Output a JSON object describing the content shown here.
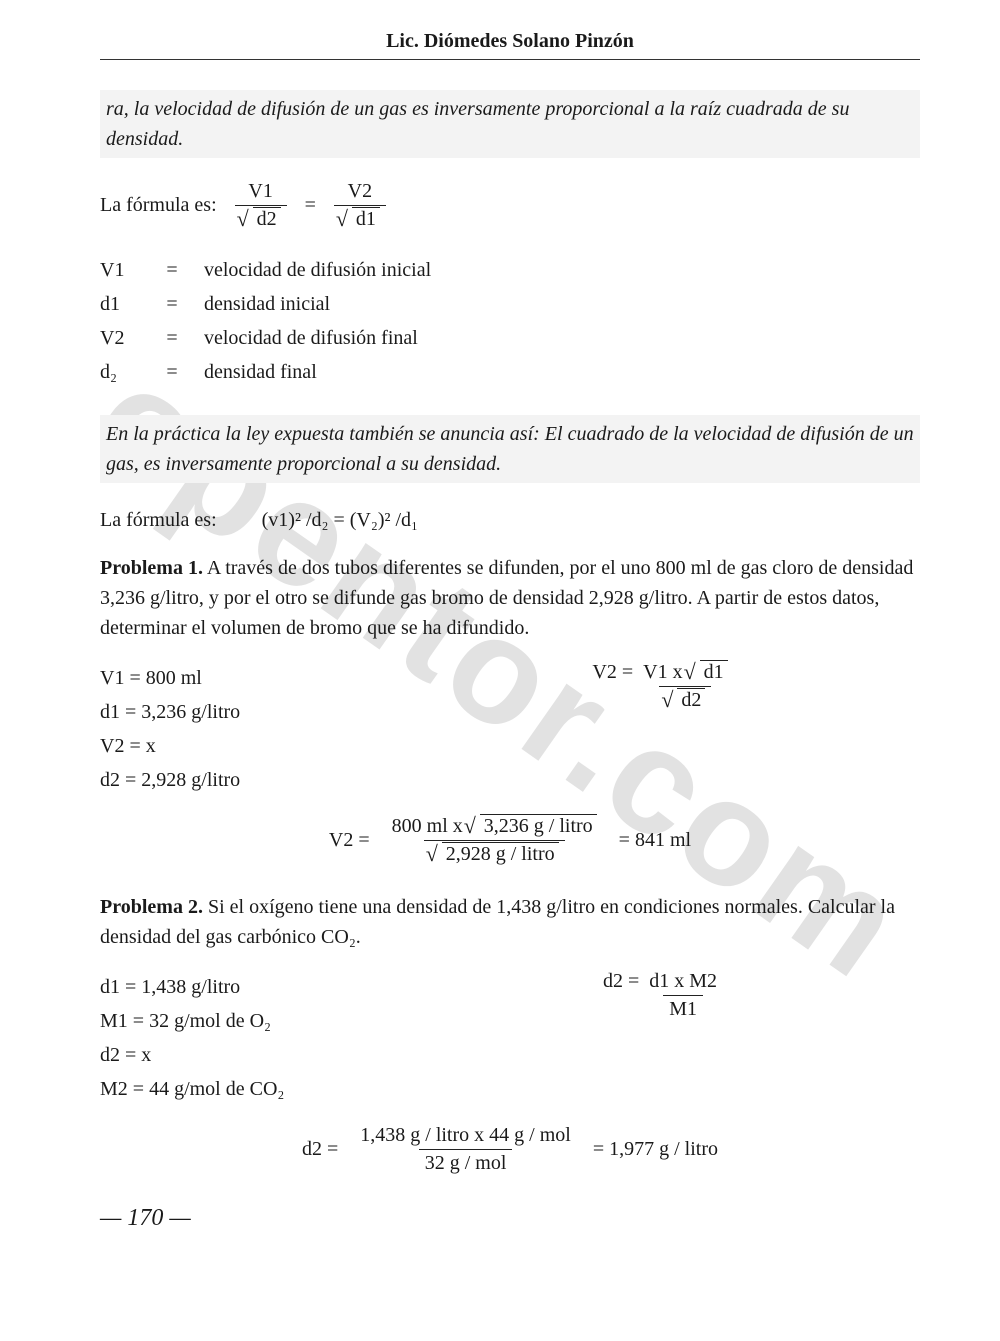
{
  "header": {
    "author": "Lic. Diómedes Solano Pinzón"
  },
  "watermark": "opentor.com",
  "intro": {
    "highlight1": "ra, la velocidad de difusión de un gas es inversamente proporcional a la raíz cuadrada de su densidad.",
    "formula_label": "La fórmula es:",
    "frac1_num": "V1",
    "frac1_den": "d2",
    "frac2_num": "V2",
    "frac2_den": "d1"
  },
  "defs": [
    {
      "sym": "V1",
      "eq": "=",
      "text": "velocidad de difusión inicial"
    },
    {
      "sym": "d1",
      "eq": "=",
      "text": "densidad inicial"
    },
    {
      "sym": "V2",
      "eq": "=",
      "text": "velocidad de difusión final"
    },
    {
      "sym": "d₂",
      "eq": "=",
      "text": "densidad final"
    }
  ],
  "highlight2": "En la práctica la ley expuesta también se anuncia así: El cuadrado de la velocidad de difusión de un gas, es inversamente proporcional a su densidad.",
  "formula2": {
    "label": "La fórmula es:",
    "expr": "(v1)² /d₂  =  (V₂)² /d₁"
  },
  "problem1": {
    "title": "Problema 1.",
    "text": " A través de dos tubos diferentes se difunden, por el uno 800 ml de gas cloro de densidad 3,236 g/litro, y por el otro se difunde gas bromo de densidad 2,928 g/litro. A partir de estos datos, determinar el volumen de bromo que se ha difundido.",
    "givens": [
      "V1  =  800 ml",
      "d1  =  3,236  g/litro",
      "V2  =  x",
      "d2  =  2,928  g/litro"
    ],
    "f1_lhs": "V2  = ",
    "f1_num": "V1 x ",
    "f1_num_sqrt": "d1",
    "f1_den_sqrt": "d2",
    "f2_lhs": "V2  = ",
    "f2_num_a": "800 ml x ",
    "f2_num_sqrt": "3,236 g / litro",
    "f2_den_sqrt": "2,928 g / litro",
    "f2_result": "  =  841 ml"
  },
  "problem2": {
    "title": "Problema 2.",
    "text": " Si el oxígeno tiene una densidad de 1,438 g/litro en condiciones normales. Calcular la densidad del gas carbónico CO₂.",
    "givens": [
      "d1   =  1,438   g/litro",
      "M1  =  32     g/mol de O₂",
      "d2   =  x",
      "M2  =  44  g/mol de CO₂"
    ],
    "f1_lhs": "d2  = ",
    "f1_num": "d1 x M2",
    "f1_den": "M1",
    "f2_lhs": "d2  = ",
    "f2_num": "1,438 g / litro x 44 g / mol",
    "f2_den": "32 g / mol",
    "f2_result": "  =  1,977 g / litro"
  },
  "page_number": "— 170 —"
}
